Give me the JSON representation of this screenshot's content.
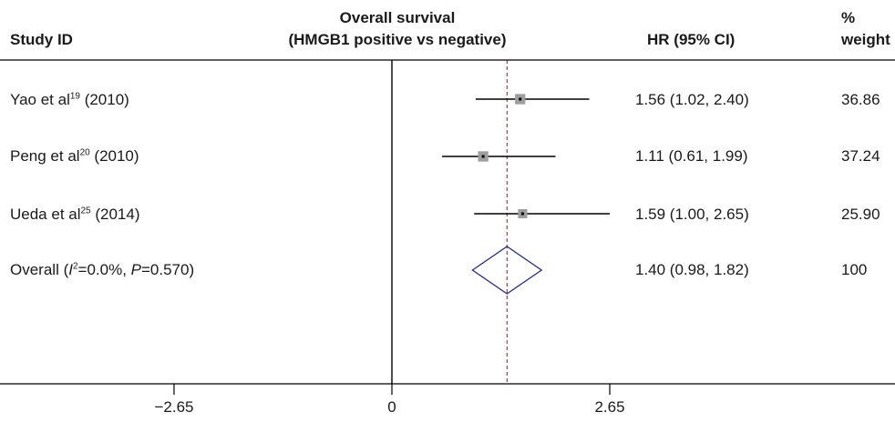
{
  "chart_data": {
    "type": "forest",
    "header": {
      "study_label": "Study ID",
      "title_line1": "Overall survival",
      "title_line2": "(HMGB1 positive vs negative)",
      "hr_label": "HR (95% CI)",
      "weight_line1": "%",
      "weight_line2": "weight"
    },
    "studies": [
      {
        "name": "Yao et al",
        "ref": "19",
        "year": " (2010)",
        "hr": 1.56,
        "lo": 1.02,
        "hi": 2.4,
        "hr_text": "1.56 (1.02, 2.40)",
        "weight": "36.86"
      },
      {
        "name": "Peng et al",
        "ref": "20",
        "year": " (2010)",
        "hr": 1.11,
        "lo": 0.61,
        "hi": 1.99,
        "hr_text": "1.11 (0.61, 1.99)",
        "weight": "37.24"
      },
      {
        "name": "Ueda et al",
        "ref": "25",
        "year": " (2014)",
        "hr": 1.59,
        "lo": 1.0,
        "hi": 2.65,
        "hr_text": "1.59 (1.00, 2.65)",
        "weight": "25.90"
      }
    ],
    "overall": {
      "prefix": "Overall (",
      "i2_var": "I",
      "i2_sup": "2",
      "i2_value": "=0.0%, ",
      "p_var": "P",
      "p_value": "=0.570)",
      "hr": 1.4,
      "lo": 0.98,
      "hi": 1.82,
      "hr_text": "1.40 (0.98, 1.82)",
      "weight": "100"
    },
    "x_axis": {
      "ticks": [
        -2.65,
        0,
        2.65
      ],
      "tick_labels": [
        "−2.65",
        "0",
        "2.65"
      ],
      "range": [
        -2.65,
        2.65
      ]
    },
    "colors": {
      "ci_line": "#000000",
      "marker": "#9e9e9e",
      "diamond": "#1f2a8a",
      "ref_line": "#8b1a2f"
    }
  }
}
